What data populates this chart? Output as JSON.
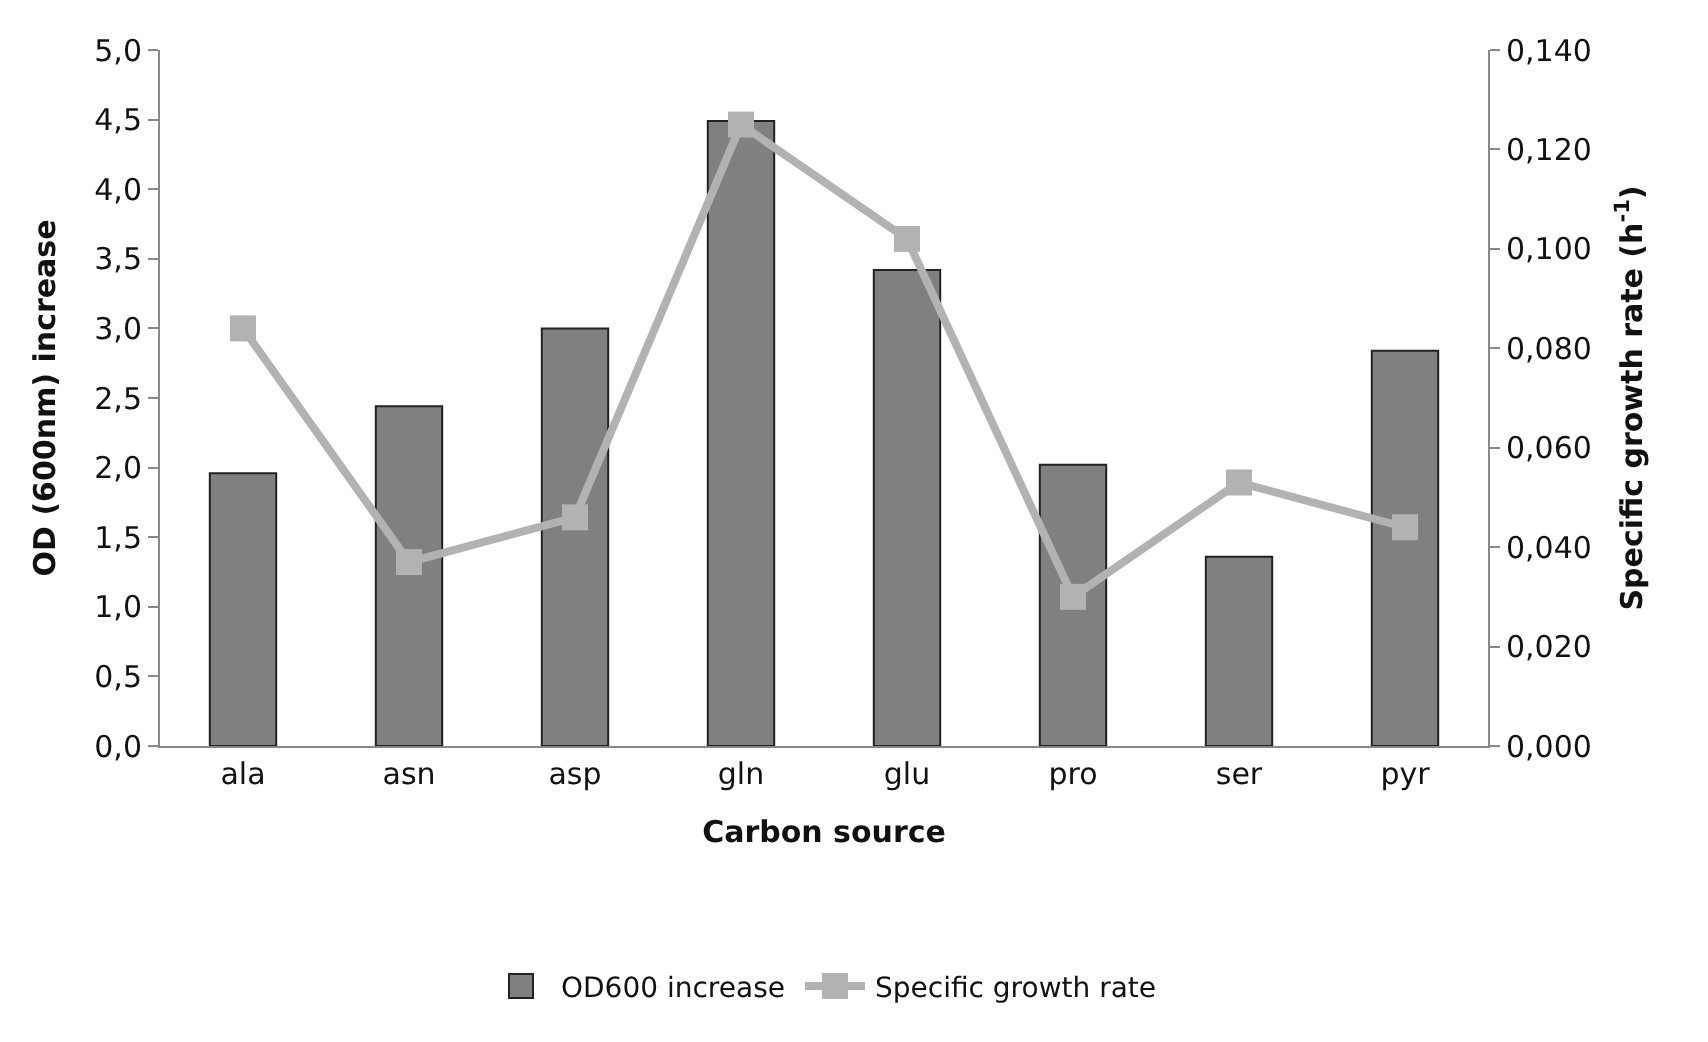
{
  "chart_data": {
    "type": "bar",
    "xlabel": "Carbon source",
    "ylabel": "OD (600nm) increase",
    "y2label": "Specific growth rate (h$^{-1}$)",
    "categories": [
      "ala",
      "asn",
      "asp",
      "gln",
      "glu",
      "pro",
      "ser",
      "pyr"
    ],
    "series": [
      {
        "name": "OD600 increase",
        "color": "#808080",
        "values": [
          1.96,
          2.44,
          3.0,
          4.49,
          3.42,
          2.02,
          1.36,
          2.84
        ]
      },
      {
        "name": "Specific growth rate",
        "type": "line",
        "axis": "y2",
        "color": "#b2b2b2",
        "marker": "square",
        "values": [
          0.084,
          0.037,
          0.046,
          0.125,
          0.102,
          0.03,
          0.053,
          0.044
        ]
      }
    ],
    "ylim": [
      0,
      5
    ],
    "yticks": [
      {
        "value": 0,
        "label": "0,0"
      },
      {
        "value": 0.5,
        "label": "0,5"
      },
      {
        "value": 1,
        "label": "1,0"
      },
      {
        "value": 1.5,
        "label": "1,5"
      },
      {
        "value": 2,
        "label": "2,0"
      },
      {
        "value": 2.5,
        "label": "2,5"
      },
      {
        "value": 3,
        "label": "3,0"
      },
      {
        "value": 3.5,
        "label": "3,5"
      },
      {
        "value": 4,
        "label": "4,0"
      },
      {
        "value": 4.5,
        "label": "4,5"
      },
      {
        "value": 5,
        "label": "5,0"
      }
    ],
    "y2lim": [
      0,
      0.14
    ],
    "y2ticks": [
      {
        "value": 0,
        "label": "0,000"
      },
      {
        "value": 0.02,
        "label": "0,020"
      },
      {
        "value": 0.04,
        "label": "0,040"
      },
      {
        "value": 0.06,
        "label": "0,060"
      },
      {
        "value": 0.08,
        "label": "0,080"
      },
      {
        "value": 0.1,
        "label": "0,100"
      },
      {
        "value": 0.12,
        "label": "0,120"
      },
      {
        "value": 0.14,
        "label": "0,140"
      }
    ],
    "legend": "bottom"
  }
}
